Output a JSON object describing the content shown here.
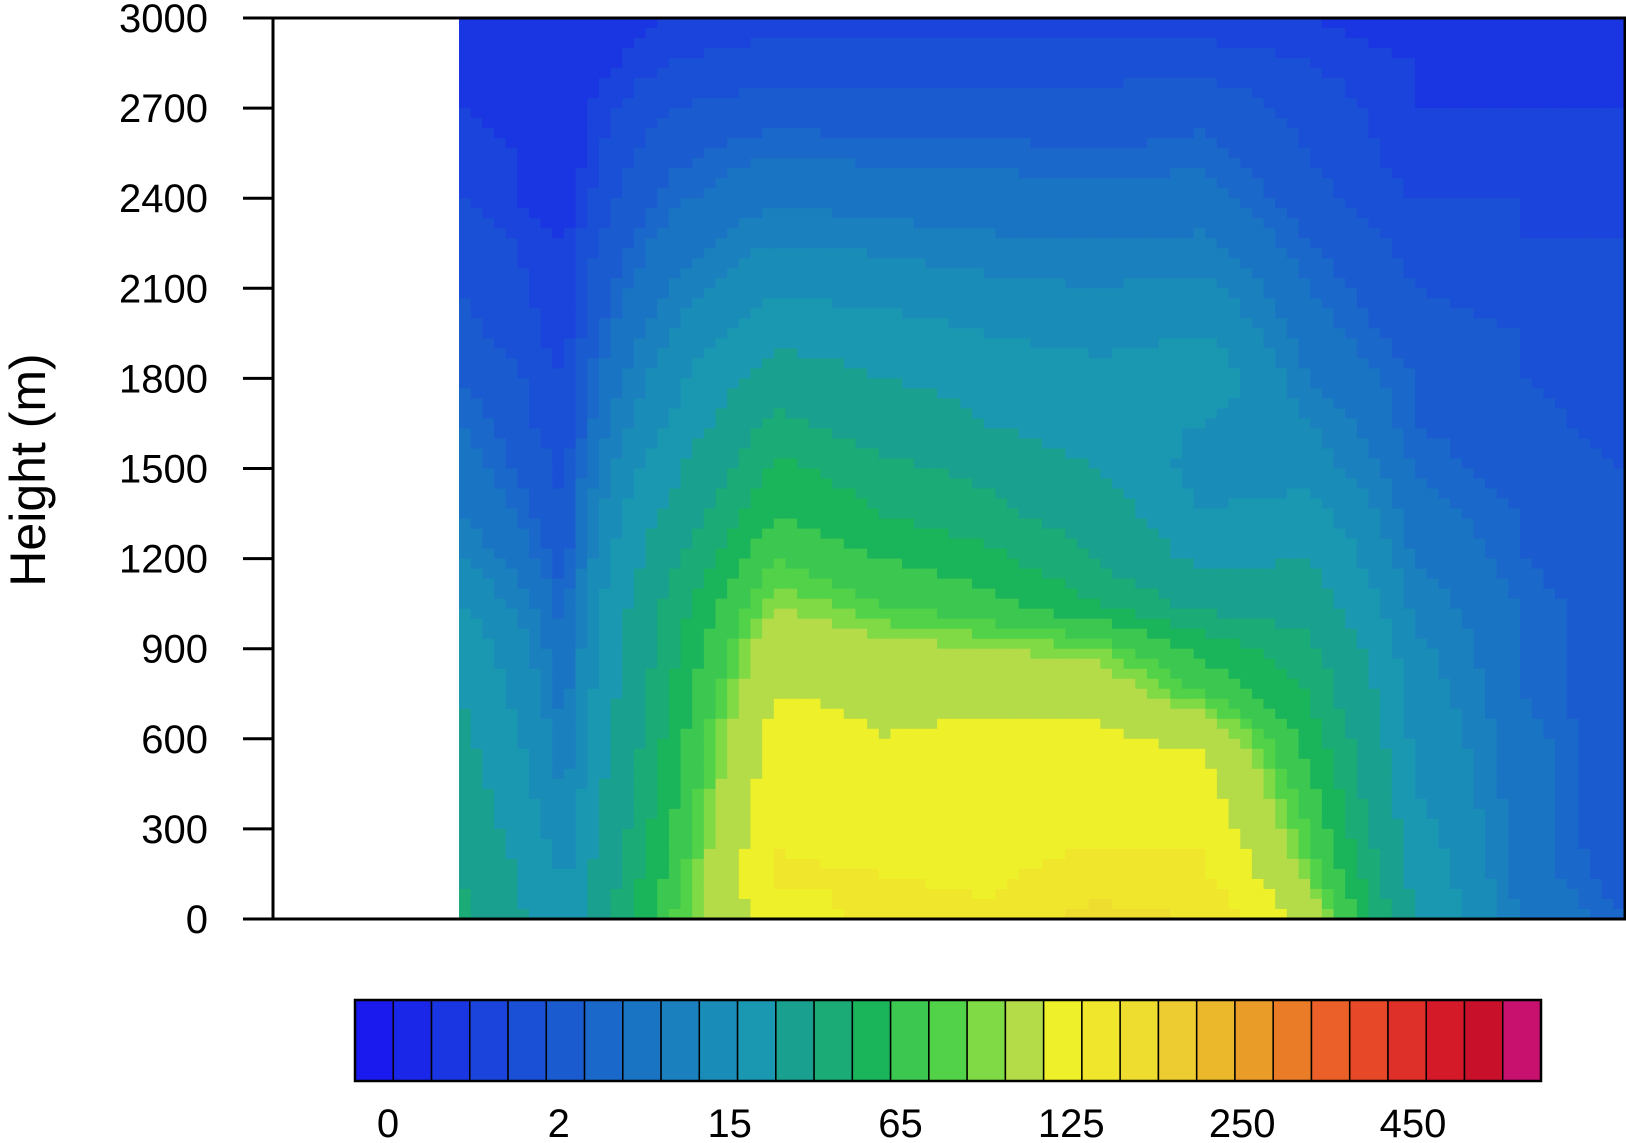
{
  "chart_data": {
    "type": "heatmap",
    "title": "",
    "ylabel": "Height (m)",
    "xlabel": "",
    "ylim": [
      0,
      3000
    ],
    "y_ticks": [
      "0",
      "300",
      "600",
      "900",
      "1200",
      "1500",
      "1800",
      "2100",
      "2400",
      "2700",
      "3000"
    ],
    "grid": false,
    "colorbar": {
      "position": "bottom",
      "labels": [
        "0",
        "2",
        "15",
        "65",
        "125",
        "250",
        "450"
      ],
      "colors": [
        "#1a1aee",
        "#1a26e8",
        "#1a35e2",
        "#1a44dc",
        "#1a50d6",
        "#1a5cd0",
        "#1a68ca",
        "#1a74c4",
        "#1a80be",
        "#1a8cb8",
        "#1a98b2",
        "#1aa08e",
        "#1aab76",
        "#1ab45a",
        "#3cc850",
        "#52d248",
        "#80da46",
        "#b4dc48",
        "#eef02a",
        "#f0e62c",
        "#eedc2e",
        "#eccc30",
        "#eab82a",
        "#ea9c28",
        "#ea7c28",
        "#ea6028",
        "#e64828",
        "#de3028",
        "#d41a28",
        "#c8102a",
        "#c8106e"
      ]
    },
    "contour_levels": [
      0,
      0.5,
      1,
      2,
      3,
      5,
      8,
      10,
      15,
      20,
      30,
      45,
      65,
      80,
      95,
      110,
      118,
      125,
      150,
      175,
      200,
      225,
      250,
      300,
      350,
      400,
      450,
      500,
      550,
      600
    ],
    "x_columns": 12,
    "rows_height_m": [
      0,
      150,
      300,
      450,
      600,
      750,
      900,
      1050,
      1200,
      1350,
      1500,
      1650,
      1800,
      1950,
      2100,
      2250,
      2400,
      2550,
      2700,
      2850,
      3000
    ],
    "values": [
      [
        70,
        30,
        110,
        160,
        185,
        180,
        210,
        200,
        140,
        45,
        15,
        8
      ],
      [
        65,
        28,
        100,
        180,
        175,
        170,
        185,
        180,
        120,
        40,
        12,
        6
      ],
      [
        60,
        22,
        95,
        170,
        160,
        165,
        170,
        170,
        110,
        35,
        12,
        5
      ],
      [
        55,
        18,
        90,
        165,
        160,
        160,
        165,
        160,
        100,
        30,
        12,
        5
      ],
      [
        50,
        15,
        85,
        160,
        150,
        155,
        155,
        145,
        90,
        28,
        12,
        5
      ],
      [
        45,
        12,
        80,
        150,
        145,
        145,
        140,
        110,
        80,
        25,
        10,
        5
      ],
      [
        40,
        10,
        75,
        140,
        130,
        125,
        120,
        90,
        70,
        22,
        10,
        5
      ],
      [
        30,
        8,
        70,
        125,
        110,
        100,
        80,
        60,
        55,
        18,
        10,
        5
      ],
      [
        20,
        6,
        60,
        110,
        95,
        85,
        65,
        40,
        45,
        15,
        8,
        5
      ],
      [
        15,
        5,
        50,
        95,
        80,
        70,
        55,
        30,
        35,
        12,
        8,
        5
      ],
      [
        12,
        4,
        40,
        85,
        70,
        60,
        45,
        25,
        25,
        10,
        6,
        5
      ],
      [
        10,
        3,
        30,
        70,
        55,
        45,
        35,
        30,
        20,
        8,
        6,
        4
      ],
      [
        8,
        3,
        25,
        55,
        45,
        40,
        35,
        40,
        15,
        8,
        5,
        4
      ],
      [
        6,
        2,
        20,
        40,
        35,
        30,
        25,
        30,
        12,
        6,
        5,
        4
      ],
      [
        5,
        2,
        15,
        28,
        25,
        22,
        20,
        22,
        10,
        5,
        4,
        3
      ],
      [
        4,
        2,
        12,
        20,
        18,
        16,
        15,
        16,
        8,
        4,
        3,
        3
      ],
      [
        3,
        1,
        9,
        14,
        12,
        12,
        11,
        12,
        6,
        3,
        3,
        2
      ],
      [
        3,
        1,
        7,
        10,
        9,
        9,
        8,
        9,
        5,
        2,
        2,
        2
      ],
      [
        2,
        1,
        5,
        6,
        6,
        6,
        6,
        7,
        4,
        2,
        2,
        2
      ],
      [
        2,
        1,
        3,
        4,
        4,
        4,
        4,
        4,
        3,
        2,
        1,
        1
      ],
      [
        1,
        1,
        2,
        2,
        2,
        2,
        2,
        2,
        2,
        1,
        1,
        1
      ]
    ]
  }
}
